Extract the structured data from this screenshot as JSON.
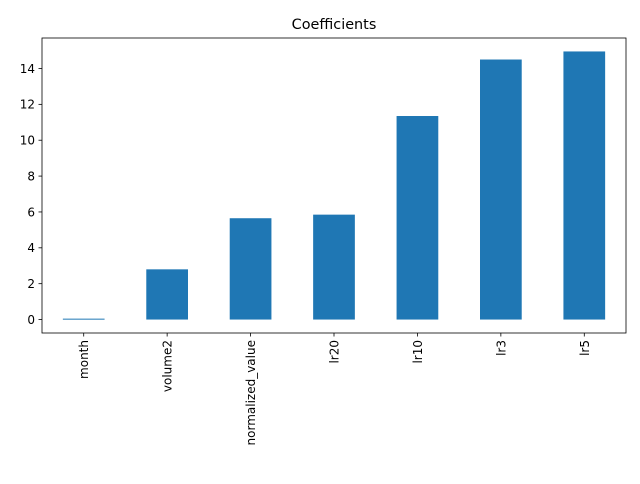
{
  "chart_data": {
    "type": "bar",
    "title": "Coefficients",
    "xlabel": "",
    "ylabel": "",
    "categories": [
      "month",
      "volume2",
      "normalized_value",
      "lr20",
      "lr10",
      "lr3",
      "lr5"
    ],
    "values": [
      0.05,
      2.8,
      5.65,
      5.85,
      11.35,
      14.5,
      14.95
    ],
    "ylim": [
      -0.75,
      15.7
    ],
    "yticks": [
      0,
      2,
      4,
      6,
      8,
      10,
      12,
      14
    ],
    "grid": false,
    "legend": "none",
    "bar_color": "#1f77b4",
    "x_tick_rotation": "vertical"
  }
}
